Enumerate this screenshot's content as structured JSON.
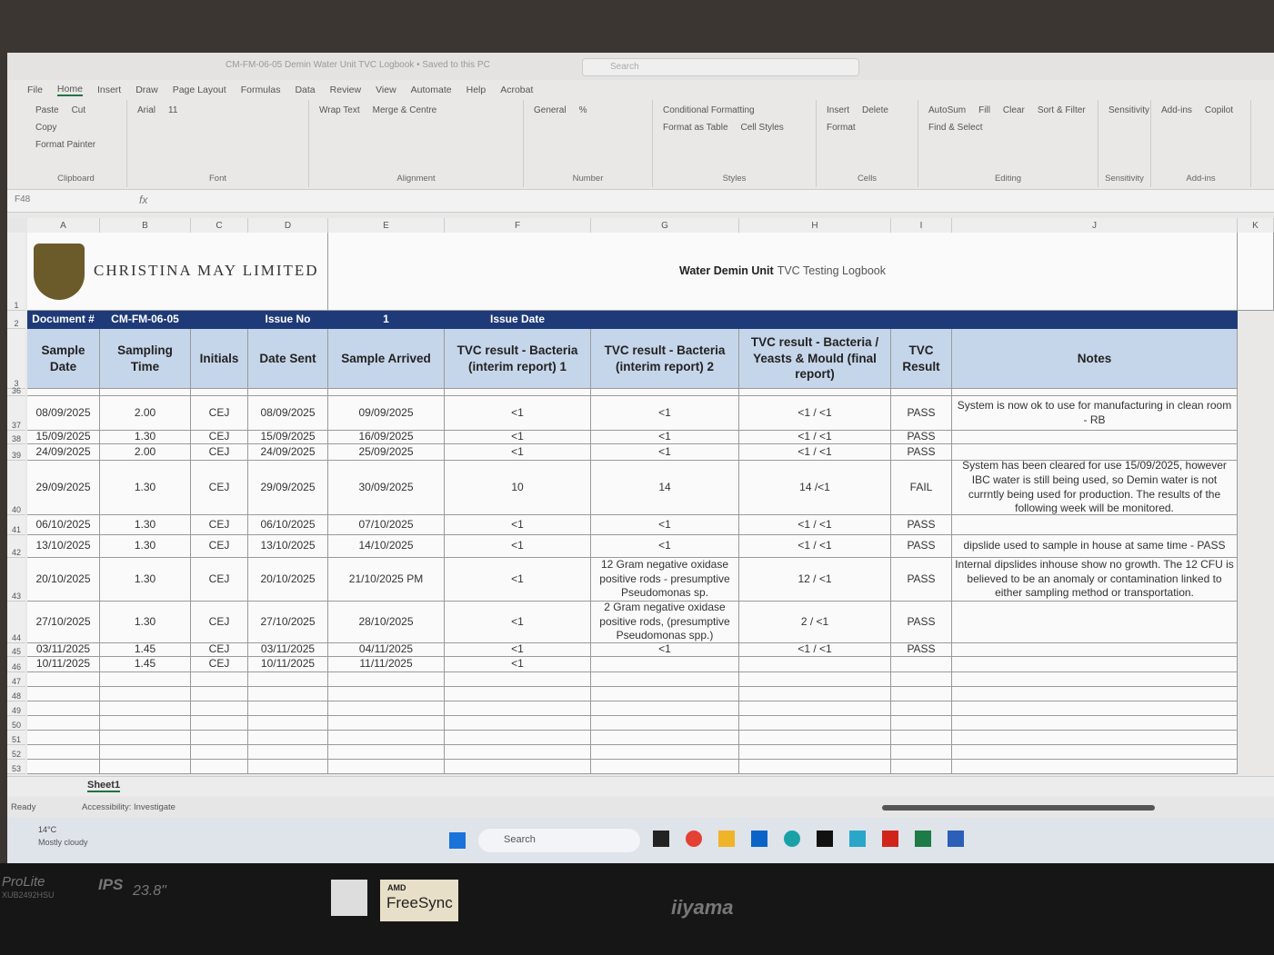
{
  "window": {
    "title": "CM-FM-06-05 Demin Water Unit TVC Logbook • Saved to this PC",
    "search": "Search"
  },
  "tabs": [
    "File",
    "Home",
    "Insert",
    "Draw",
    "Page Layout",
    "Formulas",
    "Data",
    "Review",
    "View",
    "Automate",
    "Help",
    "Acrobat"
  ],
  "ribbon": [
    {
      "name": "Clipboard",
      "items": [
        "Paste",
        "Cut",
        "Copy",
        "Format Painter"
      ]
    },
    {
      "name": "Font",
      "items": [
        "Arial",
        "11"
      ]
    },
    {
      "name": "Alignment",
      "items": [
        "Wrap Text",
        "Merge & Centre"
      ]
    },
    {
      "name": "Number",
      "items": [
        "General",
        "%"
      ]
    },
    {
      "name": "Styles",
      "items": [
        "Conditional Formatting",
        "Format as Table",
        "Cell Styles"
      ]
    },
    {
      "name": "Cells",
      "items": [
        "Insert",
        "Delete",
        "Format"
      ]
    },
    {
      "name": "Editing",
      "items": [
        "AutoSum",
        "Fill",
        "Clear",
        "Sort & Filter",
        "Find & Select"
      ]
    },
    {
      "name": "Sensitivity",
      "items": [
        "Sensitivity"
      ]
    },
    {
      "name": "Add-ins",
      "items": [
        "Add-ins",
        "Copilot"
      ]
    }
  ],
  "formula_bar": {
    "name_box": "F48",
    "fx": "fx"
  },
  "sheet": {
    "columns": [
      "A",
      "B",
      "C",
      "D",
      "E",
      "F",
      "G",
      "H",
      "I",
      "J",
      "K"
    ],
    "company": "CHRISTINA MAY LIMITED",
    "title_bold": "Water Demin Unit",
    "title_rest": "TVC Testing Logbook",
    "doc_row": {
      "doc_label": "Document #",
      "doc_no": "CM-FM-06-05",
      "issue_no_label": "Issue No",
      "issue_no": "1",
      "issue_date_label": "Issue Date"
    },
    "headers": [
      "Sample Date",
      "Sampling Time",
      "Initials",
      "Date Sent",
      "Sample Arrived",
      "TVC result - Bacteria (interim report) 1",
      "TVC result - Bacteria (interim report) 2",
      "TVC result - Bacteria / Yeasts & Mould (final report)",
      "TVC Result",
      "Notes"
    ],
    "row_numbers": [
      "1",
      "2",
      "3",
      "36",
      "37",
      "38",
      "39",
      "40",
      "41",
      "42",
      "43",
      "44",
      "45",
      "46",
      "47",
      "48",
      "49",
      "50",
      "51",
      "52",
      "53"
    ],
    "rows": [
      {
        "cells": [
          "08/09/2025",
          "2.00",
          "CEJ",
          "08/09/2025",
          "09/09/2025",
          "<1",
          "<1",
          "<1 / <1",
          "PASS",
          "System is now ok to use for manufacturing in clean room - RB"
        ]
      },
      {
        "cells": [
          "15/09/2025",
          "1.30",
          "CEJ",
          "15/09/2025",
          "16/09/2025",
          "<1",
          "<1",
          "<1 / <1",
          "PASS",
          null
        ]
      },
      {
        "cells": [
          "24/09/2025",
          "2.00",
          "CEJ",
          "24/09/2025",
          "25/09/2025",
          "<1",
          "<1",
          "<1 / <1",
          "PASS",
          null
        ]
      },
      {
        "cells": [
          "29/09/2025",
          "1.30",
          "CEJ",
          "29/09/2025",
          "30/09/2025",
          "10",
          "14",
          "14 /<1",
          "FAIL",
          "System has been cleared for use 15/09/2025, however IBC water is still being used, so Demin water is not currntly being used for production. The results of the following week will be monitored."
        ]
      },
      {
        "cells": [
          "06/10/2025",
          "1.30",
          "CEJ",
          "06/10/2025",
          "07/10/2025",
          "<1",
          "<1",
          "<1 / <1",
          "PASS",
          null
        ]
      },
      {
        "cells": [
          "13/10/2025",
          "1.30",
          "CEJ",
          "13/10/2025",
          "14/10/2025",
          "<1",
          "<1",
          "<1 / <1",
          "PASS",
          "dipslide used to sample in house at same time - PASS"
        ]
      },
      {
        "cells": [
          "20/10/2025",
          "1.30",
          "CEJ",
          "20/10/2025",
          "21/10/2025 PM",
          "<1",
          "12 Gram negative oxidase positive rods - presumptive Pseudomonas sp.",
          "12 / <1",
          "PASS",
          "Internal dipslides inhouse show no growth. The 12 CFU is believed to be an anomaly or contamination linked to either sampling method or transportation."
        ]
      },
      {
        "cells": [
          "27/10/2025",
          "1.30",
          "CEJ",
          "27/10/2025",
          "28/10/2025",
          "<1",
          "2 Gram negative oxidase positive rods, (presumptive Pseudomonas spp.)",
          "2 / <1",
          "PASS",
          null
        ]
      },
      {
        "cells": [
          "03/11/2025",
          "1.45",
          "CEJ",
          "03/11/2025",
          "04/11/2025",
          "<1",
          "<1",
          "<1 / <1",
          "PASS",
          null
        ]
      },
      {
        "cells": [
          "10/11/2025",
          "1.45",
          "CEJ",
          "10/11/2025",
          "11/11/2025",
          "<1",
          null,
          null,
          null,
          null
        ]
      }
    ],
    "tab": "Sheet1"
  },
  "status": {
    "ready": "Ready",
    "accessibility": "Accessibility: Investigate"
  },
  "taskbar": {
    "temperature": "14°C",
    "weather": "Mostly cloudy",
    "search": "Search"
  },
  "bezel": {
    "series": "ProLite",
    "model": "XUB2492HSU",
    "panel": "IPS",
    "size": "23.8\"",
    "amd": "AMD",
    "freesync": "FreeSync",
    "brand": "iiyama"
  }
}
